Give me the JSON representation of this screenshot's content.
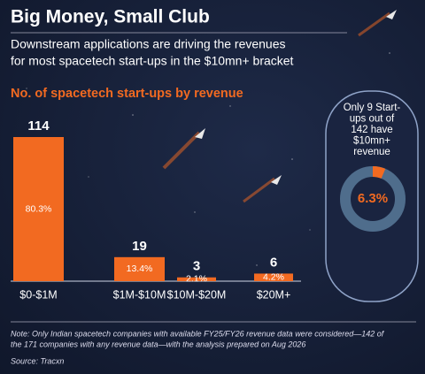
{
  "header": {
    "title": "Big Money, Small Club",
    "subtitle_lines": [
      "Downstream applications are driving the revenues",
      "for most spacetech start-ups in the $10mn+ bracket"
    ]
  },
  "chart_data": [
    {
      "type": "bar",
      "title": "No. of spacetech start-ups by revenue",
      "categories": [
        "$0-$1M",
        "$1M-$10M",
        "$10M-$20M",
        "$20M+"
      ],
      "values": [
        114,
        19,
        3,
        6
      ],
      "color": "#f26a21",
      "percent_labels": [
        "80.3%",
        "13.4%",
        "2.1%",
        "4.2%"
      ]
    },
    {
      "type": "donut",
      "title_lines": [
        "Only 9 Start-",
        "ups out of",
        "142 have",
        "$10mn+",
        "revenue"
      ],
      "values": [
        6.3
      ],
      "value_labels": [
        "6.3%"
      ],
      "color": "#f26a21",
      "track_color": "#4f6d8c"
    }
  ],
  "footer": {
    "note_lines": [
      "Note: Only Indian spacetech companies with available FY25/FY26 revenue data were considered—142 of",
      "the 171 companies with any revenue data—with the analysis prepared on Aug 2026"
    ],
    "source": "Source: Tracxn"
  }
}
